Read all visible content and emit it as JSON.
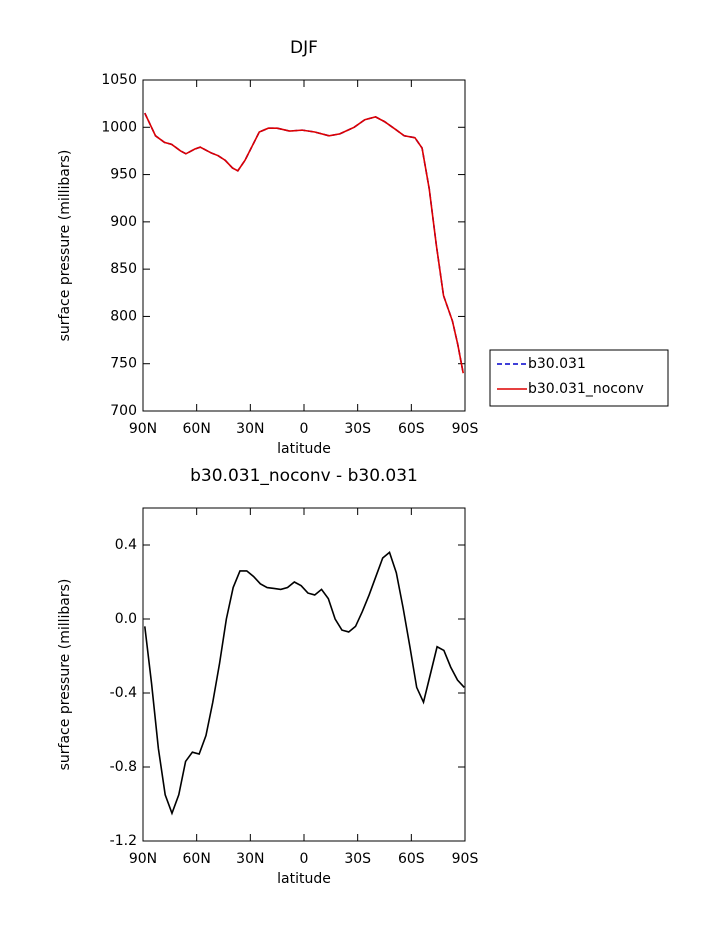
{
  "chart_data": [
    {
      "type": "line",
      "title": "DJF",
      "xlabel": "latitude",
      "ylabel": "surface pressure (millibars)",
      "x": [
        89,
        83,
        78,
        74,
        69,
        66,
        61,
        58,
        52,
        48,
        44,
        40,
        37,
        33,
        29,
        25,
        20,
        15,
        8,
        1,
        -6,
        -14,
        -20,
        -28,
        -34,
        -40,
        -45,
        -51,
        -56,
        -62,
        -66,
        -70,
        -74,
        -78,
        -83,
        -86,
        -89
      ],
      "series": [
        {
          "name": "b30.031",
          "color": "#0000cc",
          "dashed": true,
          "values": [
            1015,
            991,
            984,
            982,
            975,
            972,
            977,
            979,
            973,
            970,
            965,
            957,
            954,
            965,
            980,
            995,
            999,
            999,
            996,
            997,
            995,
            991,
            993,
            1000,
            1008,
            1011,
            1006,
            998,
            991,
            989,
            978,
            935,
            875,
            822,
            795,
            770,
            740
          ]
        },
        {
          "name": "b30.031_noconv",
          "color": "#dd0000",
          "dashed": false,
          "values": [
            1015,
            991,
            984,
            982,
            975,
            972,
            977,
            979,
            973,
            970,
            965,
            957,
            954,
            965,
            980,
            995,
            999,
            999,
            996,
            997,
            995,
            991,
            993,
            1000,
            1008,
            1011,
            1006,
            998,
            991,
            989,
            978,
            935,
            875,
            822,
            795,
            770,
            740
          ]
        }
      ],
      "xlim": [
        90,
        -90
      ],
      "xticks": [
        {
          "value": 90,
          "label": "90N"
        },
        {
          "value": 60,
          "label": "60N"
        },
        {
          "value": 30,
          "label": "30N"
        },
        0,
        {
          "value": -30,
          "label": "30S"
        },
        {
          "value": -60,
          "label": "60S"
        },
        {
          "value": -90,
          "label": "90S"
        }
      ],
      "ylim": [
        700,
        1050
      ],
      "yticks": [
        700,
        750,
        800,
        850,
        900,
        950,
        1000,
        1050
      ],
      "legend": "right"
    },
    {
      "type": "line",
      "title": "b30.031_noconv - b30.031",
      "xlabel": "latitude",
      "ylabel": "surface pressure (millibars)",
      "x": [
        89,
        85.2,
        81.4,
        77.6,
        73.8,
        70,
        66.2,
        62.4,
        58.6,
        54.8,
        51,
        47.2,
        43.4,
        39.6,
        35.8,
        32,
        28.2,
        24.4,
        20.6,
        16.8,
        13,
        9.2,
        5.4,
        1.6,
        -2.2,
        -6,
        -9.8,
        -13.6,
        -17.4,
        -21.2,
        -25,
        -28.8,
        -32.6,
        -36.4,
        -40.2,
        -44,
        -47.8,
        -51.6,
        -55.4,
        -59.2,
        -63,
        -66.8,
        -70.6,
        -74.4,
        -78.2,
        -82,
        -85.8,
        -89.6
      ],
      "values": [
        -0.04,
        -0.35,
        -0.7,
        -0.95,
        -1.05,
        -0.95,
        -0.77,
        -0.72,
        -0.73,
        -0.63,
        -0.45,
        -0.24,
        0.0,
        0.17,
        0.26,
        0.26,
        0.23,
        0.19,
        0.17,
        0.165,
        0.16,
        0.17,
        0.2,
        0.18,
        0.14,
        0.13,
        0.16,
        0.11,
        0.0,
        -0.06,
        -0.07,
        -0.04,
        0.04,
        0.13,
        0.23,
        0.33,
        0.36,
        0.25,
        0.06,
        -0.15,
        -0.37,
        -0.45,
        -0.3,
        -0.15,
        -0.17,
        -0.26,
        -0.33,
        -0.37
      ],
      "color": "#000000",
      "xlim": [
        90,
        -90
      ],
      "xticks": [
        {
          "value": 90,
          "label": "90N"
        },
        {
          "value": 60,
          "label": "60N"
        },
        {
          "value": 30,
          "label": "30N"
        },
        0,
        {
          "value": -30,
          "label": "30S"
        },
        {
          "value": -60,
          "label": "60S"
        },
        {
          "value": -90,
          "label": "90S"
        }
      ],
      "ylim": [
        -1.2,
        0.6
      ],
      "yticks": [
        {
          "value": -1.2,
          "label": "-1.2"
        },
        {
          "value": -0.8,
          "label": "-0.8"
        },
        {
          "value": -0.4,
          "label": "-0.4"
        },
        {
          "value": 0,
          "label": "0.0"
        },
        {
          "value": 0.4,
          "label": "0.4"
        }
      ]
    }
  ]
}
